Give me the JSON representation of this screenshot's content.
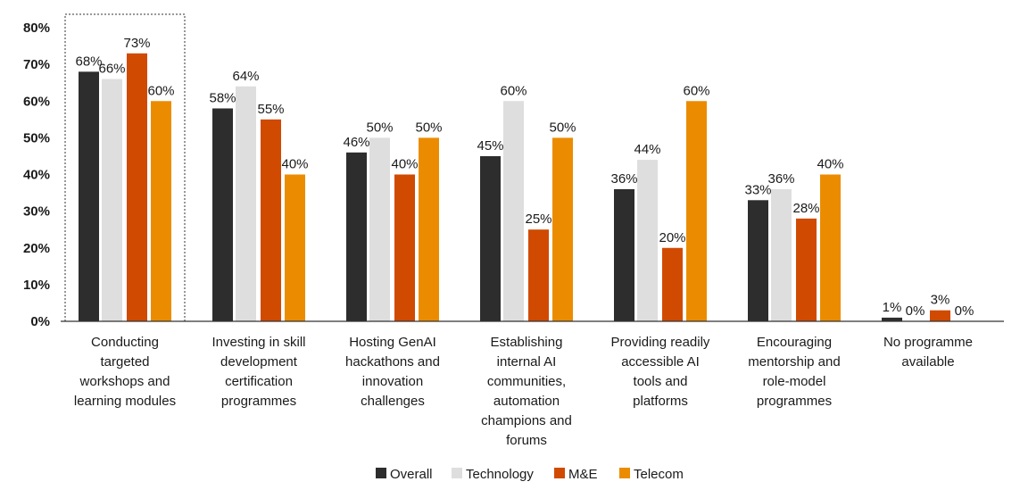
{
  "chart_data": {
    "type": "bar",
    "categories": [
      [
        "Conducting",
        "targeted",
        "workshops and",
        "learning modules"
      ],
      [
        "Investing in skill",
        "development",
        "certification",
        "programmes"
      ],
      [
        "Hosting GenAI",
        "hackathons and",
        "innovation",
        "challenges"
      ],
      [
        "Establishing",
        "internal AI",
        "communities,",
        "automation",
        "champions and",
        "forums"
      ],
      [
        "Providing readily",
        "accessible AI",
        "tools and",
        "platforms"
      ],
      [
        "Encouraging",
        "mentorship and",
        "role-model",
        "programmes"
      ],
      [
        "No programme",
        "available"
      ]
    ],
    "series": [
      {
        "name": "Overall",
        "color": "#2d2d2d",
        "values": [
          68,
          58,
          46,
          45,
          36,
          33,
          1
        ]
      },
      {
        "name": "Technology",
        "color": "#dedede",
        "values": [
          66,
          64,
          50,
          60,
          44,
          36,
          0
        ]
      },
      {
        "name": "M&E",
        "color": "#d04a02",
        "values": [
          73,
          55,
          40,
          25,
          20,
          28,
          3
        ]
      },
      {
        "name": "Telecom",
        "color": "#eb8c00",
        "values": [
          60,
          40,
          50,
          50,
          60,
          40,
          0
        ]
      }
    ],
    "value_suffix": "%",
    "yticks": [
      "0%",
      "10%",
      "20%",
      "30%",
      "40%",
      "50%",
      "60%",
      "70%",
      "80%"
    ],
    "ylim": [
      0,
      80
    ],
    "grid": false,
    "legend": "bottom-center",
    "highlighted_category": 0
  }
}
